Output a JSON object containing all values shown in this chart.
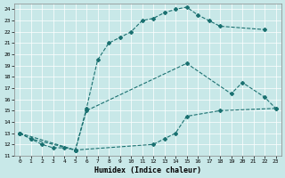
{
  "xlabel": "Humidex (Indice chaleur)",
  "xlim": [
    -0.5,
    23.5
  ],
  "ylim": [
    11,
    24.5
  ],
  "xticks": [
    0,
    1,
    2,
    3,
    4,
    5,
    6,
    7,
    8,
    9,
    10,
    11,
    12,
    13,
    14,
    15,
    16,
    17,
    18,
    19,
    20,
    21,
    22,
    23
  ],
  "yticks": [
    11,
    12,
    13,
    14,
    15,
    16,
    17,
    18,
    19,
    20,
    21,
    22,
    23,
    24
  ],
  "bg_color": "#c8e8e8",
  "line_color": "#1a7070",
  "curve1_x": [
    0,
    1,
    2,
    3,
    4,
    5,
    6,
    7,
    8,
    9,
    10,
    11,
    12,
    13,
    14,
    15,
    16,
    17,
    18,
    22
  ],
  "curve1_y": [
    13,
    12.5,
    12,
    11.7,
    11.7,
    11.5,
    15.2,
    19.5,
    21.0,
    21.5,
    22.0,
    23.0,
    23.2,
    23.7,
    24.0,
    24.2,
    23.5,
    23.0,
    22.5,
    22.2
  ],
  "curve2_x": [
    0,
    1,
    5,
    6,
    15,
    19,
    20,
    22,
    23
  ],
  "curve2_y": [
    13,
    12.5,
    11.5,
    15.0,
    19.2,
    16.5,
    17.5,
    16.2,
    15.2
  ],
  "curve3_x": [
    0,
    5,
    12,
    13,
    14,
    15,
    18,
    23
  ],
  "curve3_y": [
    13,
    11.5,
    12.0,
    12.5,
    13.0,
    14.5,
    15.0,
    15.2
  ]
}
